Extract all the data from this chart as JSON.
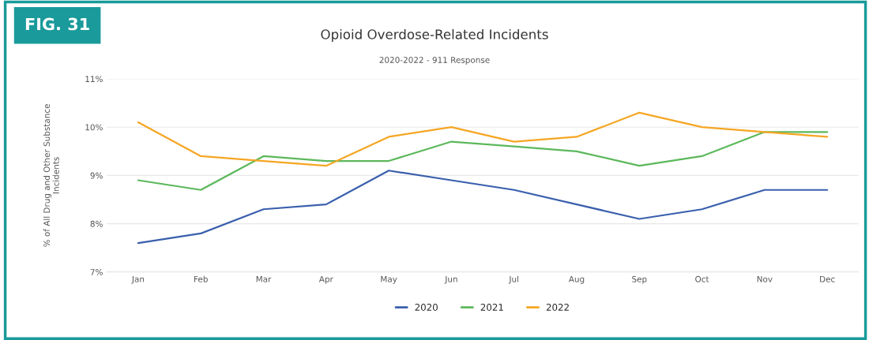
{
  "chart_data": {
    "type": "line",
    "title": "Opioid Overdose-Related Incidents",
    "subtitle": "2020-2022 - 911 Response",
    "ylabel": "% of All Drug and Other Substance\nIncidents",
    "annotations": [
      "FIG. 31"
    ],
    "categories": [
      "Jan",
      "Feb",
      "Mar",
      "Apr",
      "May",
      "Jun",
      "Jul",
      "Aug",
      "Sep",
      "Oct",
      "Nov",
      "Dec"
    ],
    "series": [
      {
        "name": "2020",
        "color": "#3a5fad",
        "values": [
          7.6,
          7.8,
          8.3,
          8.4,
          9.1,
          8.9,
          8.7,
          8.4,
          8.1,
          8.3,
          8.7,
          8.7
        ]
      },
      {
        "name": "2021",
        "color": "#5cb85c",
        "values": [
          8.9,
          8.7,
          9.4,
          9.3,
          9.3,
          9.7,
          9.6,
          9.5,
          9.2,
          9.4,
          9.9,
          9.9
        ]
      },
      {
        "name": "2022",
        "color": "#f5a623",
        "values": [
          10.1,
          9.4,
          9.3,
          9.2,
          9.8,
          10.0,
          9.7,
          9.8,
          10.3,
          10.0,
          9.9,
          9.8
        ]
      }
    ],
    "ylim": [
      7,
      11
    ],
    "yticks": [
      {
        "value": 7,
        "label": "7%"
      },
      {
        "value": 8,
        "label": "8%"
      },
      {
        "value": 9,
        "label": "9%"
      },
      {
        "value": 10,
        "label": "10%"
      },
      {
        "value": 11,
        "label": "11%"
      }
    ],
    "grid": "y",
    "legend": "bottom",
    "marker": "none",
    "line_style": "solid"
  }
}
